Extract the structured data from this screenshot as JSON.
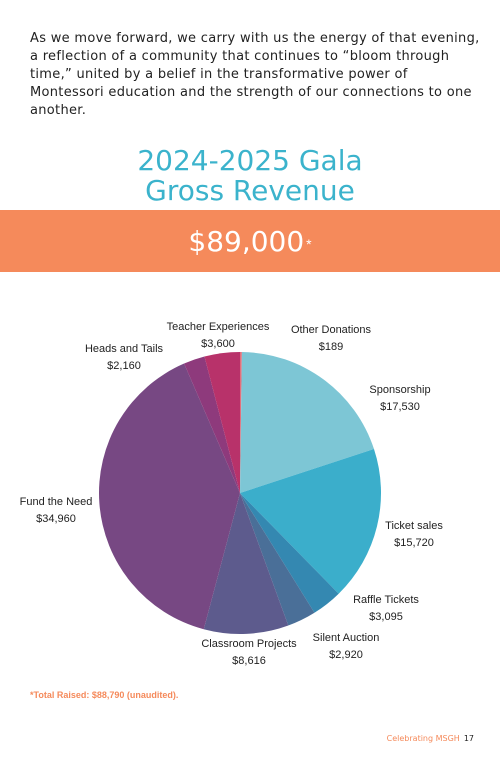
{
  "intro_text": "As we move forward, we carry with us the energy of that evening, a reflection of a community that continues to “bloom through time,” united by a belief in the transformative power of Montessori education and the strength of our connections to one another.",
  "title_line1": "2024-2025 Gala",
  "title_line2": "Gross Revenue",
  "total_amount": "$89,000",
  "total_asterisk": "*",
  "footnote": "*Total Raised: $88,790 (unaudited).",
  "footer_label": "Celebrating MSGH",
  "page_number": "17",
  "chart_data": {
    "type": "pie",
    "slices": [
      {
        "label": "Other Donations",
        "value_label": "$189",
        "value": 189,
        "color": "#e4707c"
      },
      {
        "label": "Sponsorship",
        "value_label": "$17,530",
        "value": 17530,
        "color": "#7dc6d5"
      },
      {
        "label": "Ticket sales",
        "value_label": "$15,720",
        "value": 15720,
        "color": "#3baecb"
      },
      {
        "label": "Raffle Tickets",
        "value_label": "$3,095",
        "value": 3095,
        "color": "#3488b1"
      },
      {
        "label": "Silent Auction",
        "value_label": "$2,920",
        "value": 2920,
        "color": "#4a6f98"
      },
      {
        "label": "Classroom Projects",
        "value_label": "$8,616",
        "value": 8616,
        "color": "#5d5b8d"
      },
      {
        "label": "Fund the Need",
        "value_label": "$34,960",
        "value": 34960,
        "color": "#774883"
      },
      {
        "label": "Heads and Tails",
        "value_label": "$2,160",
        "value": 2160,
        "color": "#8e3a7c"
      },
      {
        "label": "Teacher Experiences",
        "value_label": "$3,600",
        "value": 3600,
        "color": "#b8326a"
      }
    ]
  }
}
